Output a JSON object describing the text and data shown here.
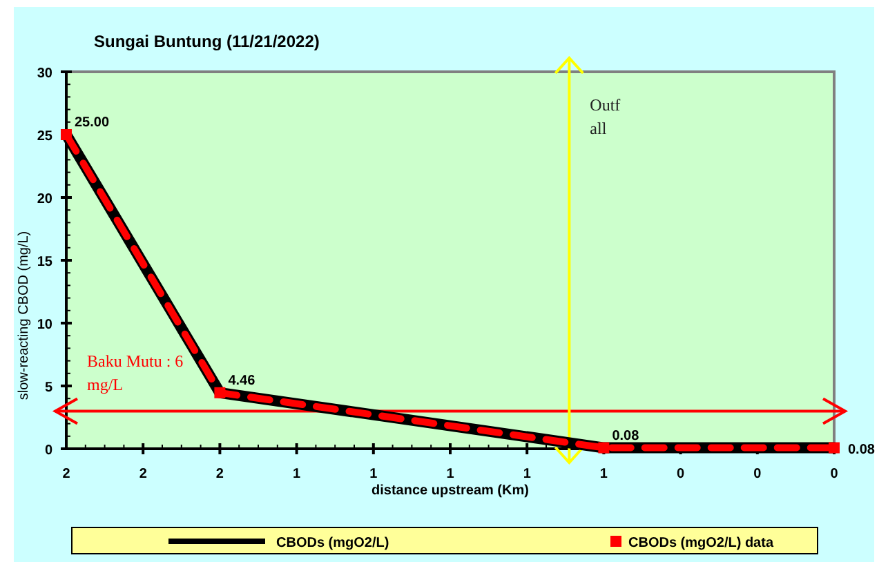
{
  "chart_data": {
    "type": "line",
    "title": "Sungai Buntung (11/21/2022)",
    "xlabel": "distance upstream (Km)",
    "ylabel": "slow-reacting CBOD (mg/L)",
    "x": [
      2.0,
      1.6,
      0.6,
      0
    ],
    "xlim": [
      2.0,
      0
    ],
    "xticks": [
      {
        "value": 2.0,
        "label": "2"
      },
      {
        "value": 1.8,
        "label": "2"
      },
      {
        "value": 1.6,
        "label": "2"
      },
      {
        "value": 1.4,
        "label": "1"
      },
      {
        "value": 1.2,
        "label": "1"
      },
      {
        "value": 1.0,
        "label": "1"
      },
      {
        "value": 0.8,
        "label": "1"
      },
      {
        "value": 0.6,
        "label": "1"
      },
      {
        "value": 0.4,
        "label": "0"
      },
      {
        "value": 0.2,
        "label": "0"
      },
      {
        "value": 0,
        "label": "0"
      }
    ],
    "ylim": [
      0,
      30
    ],
    "yticks": [
      0,
      5,
      10,
      15,
      20,
      25,
      30
    ],
    "series": [
      {
        "name": "CBODs (mgO2/L)",
        "color": "#000000",
        "values": [
          25.0,
          4.46,
          0.08,
          0.08
        ],
        "value_labels": [
          "25.00",
          "4.46",
          "0.08",
          "0.08"
        ]
      },
      {
        "name": "CBODs (mgO2/L) data",
        "color": "#ff0000",
        "values": [
          25.0,
          4.46,
          0.08,
          0.08
        ],
        "marker": "square",
        "line_style": "dashed"
      }
    ],
    "ref_lines": [
      {
        "axis": "y",
        "value": 3,
        "color": "#ff0000"
      },
      {
        "axis": "x",
        "value": 0.69,
        "label": "Outf all",
        "color": "#ffff00"
      }
    ],
    "annotations": [
      "Baku Mutu : 6 mg/L"
    ],
    "legend": "bottom",
    "grid": false
  }
}
